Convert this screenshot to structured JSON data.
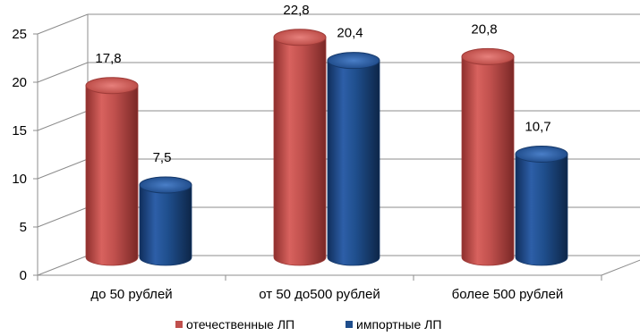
{
  "chart_data": {
    "type": "bar",
    "style": "3d-cylinder",
    "title": "",
    "xlabel": "",
    "ylabel": "",
    "categories": [
      "до 50 рублей",
      "от 50 до500 рублей",
      "более 500 рублей"
    ],
    "series": [
      {
        "name": "отечественные ЛП",
        "color": "#c0504d",
        "values": [
          17.8,
          22.8,
          20.8
        ],
        "labels": [
          "17,8",
          "22,8",
          "20,8"
        ]
      },
      {
        "name": "импортные ЛП",
        "color": "#1f4e8c",
        "values": [
          7.5,
          20.4,
          10.7
        ],
        "labels": [
          "7,5",
          "20,4",
          "10,7"
        ]
      }
    ],
    "ylim": [
      0,
      25
    ],
    "yticks": [
      "0",
      "5",
      "10",
      "15",
      "20",
      "25"
    ],
    "grid": true,
    "legend_position": "bottom"
  }
}
